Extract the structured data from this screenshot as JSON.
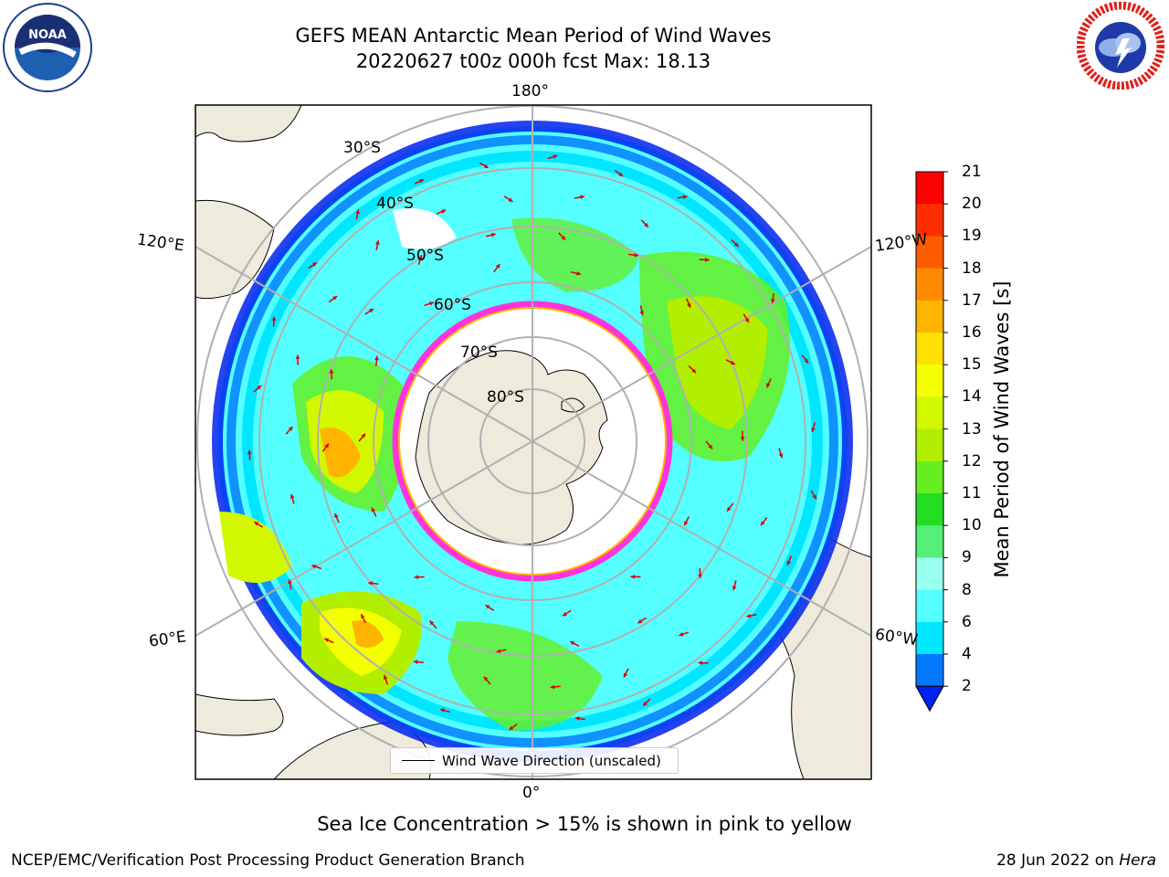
{
  "header": {
    "title_line1": "GEFS MEAN Antarctic Mean Period of Wind Waves",
    "title_line2": "20220627 t00z 000h fcst   Max: 18.13"
  },
  "logos": {
    "left": {
      "name": "noaa-logo",
      "text": "NOAA",
      "ring_text": "NATIONAL OCEANIC AND ATMOSPHERIC ADMINISTRATION · U.S. DEPARTMENT OF COMMERCE"
    },
    "right": {
      "name": "nws-logo",
      "ring_text": "NATIONAL WEATHER SERVICE"
    }
  },
  "map": {
    "projection": "south-polar-stereographic",
    "longitude_labels": {
      "top": "180°",
      "bottom": "0°",
      "upper_left": "120°E",
      "upper_right": "120°W",
      "lower_left": "60°E",
      "lower_right": "60°W"
    },
    "latitude_labels": [
      "30°S",
      "40°S",
      "50°S",
      "60°S",
      "70°S",
      "80°S"
    ],
    "legend": {
      "entry": "Wind Wave Direction (unscaled)"
    },
    "colors": {
      "land": "#efebdc",
      "ice_edge": "#ff33dd",
      "arrow": "#dd0000",
      "grid": "#b0b0b0"
    }
  },
  "colorbar": {
    "label": "Mean Period of Wind Waves [s]",
    "ticks": [
      "21",
      "20",
      "19",
      "18",
      "17",
      "16",
      "15",
      "14",
      "13",
      "12",
      "11",
      "10",
      "9",
      "8",
      "6",
      "4",
      "2"
    ],
    "bins": [
      {
        "range": "20-21",
        "color": "#ff0000"
      },
      {
        "range": "19-20",
        "color": "#ff2e00"
      },
      {
        "range": "18-19",
        "color": "#ff5c00"
      },
      {
        "range": "17-18",
        "color": "#ff8a00"
      },
      {
        "range": "16-17",
        "color": "#ffb400"
      },
      {
        "range": "15-16",
        "color": "#ffe000"
      },
      {
        "range": "14-15",
        "color": "#f4ff00"
      },
      {
        "range": "13-14",
        "color": "#d2f800"
      },
      {
        "range": "12-13",
        "color": "#b2ee00"
      },
      {
        "range": "11-12",
        "color": "#66ee22"
      },
      {
        "range": "10-11",
        "color": "#22dd22"
      },
      {
        "range": "9-10",
        "color": "#55ee77"
      },
      {
        "range": "8-9",
        "color": "#99ffee"
      },
      {
        "range": "6-8",
        "color": "#55ffff"
      },
      {
        "range": "4-6",
        "color": "#00e6ff"
      },
      {
        "range": "2-4",
        "color": "#0077ff"
      },
      {
        "range": "<2",
        "color": "#0022ee"
      }
    ]
  },
  "footer": {
    "note": "Sea Ice Concentration > 15% is shown in pink to yellow",
    "credit": "NCEP/EMC/Verification Post Processing Product Generation Branch",
    "date": "28 Jun 2022 on ",
    "host": "Hera"
  }
}
